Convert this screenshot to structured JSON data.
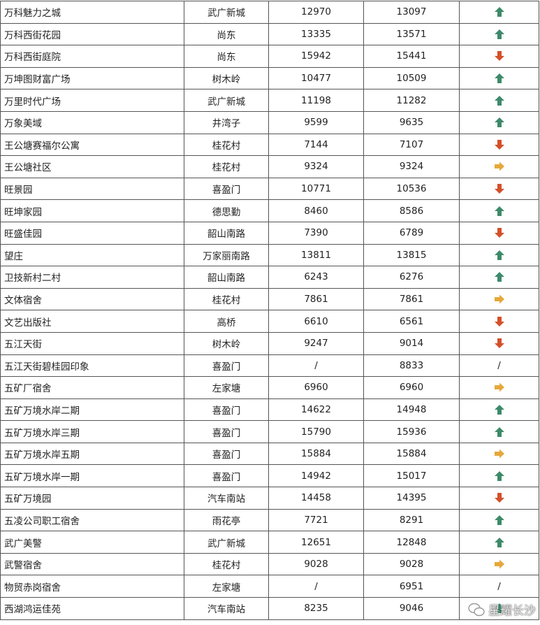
{
  "colors": {
    "up": "#3d8a6a",
    "down": "#d4502a",
    "flat": "#e6a83a"
  },
  "rows": [
    {
      "name": "万科魅力之城",
      "district": "武广新城",
      "prev": "12970",
      "curr": "13097",
      "trend": "up"
    },
    {
      "name": "万科西街花园",
      "district": "尚东",
      "prev": "13335",
      "curr": "13571",
      "trend": "up"
    },
    {
      "name": "万科西街庭院",
      "district": "尚东",
      "prev": "15942",
      "curr": "15441",
      "trend": "down"
    },
    {
      "name": "万坤图财富广场",
      "district": "树木岭",
      "prev": "10477",
      "curr": "10509",
      "trend": "up"
    },
    {
      "name": "万里时代广场",
      "district": "武广新城",
      "prev": "11198",
      "curr": "11282",
      "trend": "up"
    },
    {
      "name": "万象美域",
      "district": "井湾子",
      "prev": "9599",
      "curr": "9635",
      "trend": "up"
    },
    {
      "name": "王公塘赛福尔公寓",
      "district": "桂花村",
      "prev": "7144",
      "curr": "7107",
      "trend": "down"
    },
    {
      "name": "王公塘社区",
      "district": "桂花村",
      "prev": "9324",
      "curr": "9324",
      "trend": "flat"
    },
    {
      "name": "旺景园",
      "district": "喜盈门",
      "prev": "10771",
      "curr": "10536",
      "trend": "down"
    },
    {
      "name": "旺坤家园",
      "district": "德思勤",
      "prev": "8460",
      "curr": "8586",
      "trend": "up"
    },
    {
      "name": "旺盛佳园",
      "district": "韶山南路",
      "prev": "7390",
      "curr": "6789",
      "trend": "down"
    },
    {
      "name": "望庄",
      "district": "万家丽南路",
      "prev": "13811",
      "curr": "13815",
      "trend": "up"
    },
    {
      "name": "卫技新村二村",
      "district": "韶山南路",
      "prev": "6243",
      "curr": "6276",
      "trend": "up"
    },
    {
      "name": "文体宿舍",
      "district": "桂花村",
      "prev": "7861",
      "curr": "7861",
      "trend": "flat"
    },
    {
      "name": "文艺出版社",
      "district": "高桥",
      "prev": "6610",
      "curr": "6561",
      "trend": "down"
    },
    {
      "name": "五江天街",
      "district": "树木岭",
      "prev": "9247",
      "curr": "9014",
      "trend": "down"
    },
    {
      "name": "五江天街碧桂园印象",
      "district": "喜盈门",
      "prev": "/",
      "curr": "8833",
      "trend": "none",
      "trend_text": "/"
    },
    {
      "name": "五矿厂宿舍",
      "district": "左家塘",
      "prev": "6960",
      "curr": "6960",
      "trend": "flat"
    },
    {
      "name": "五矿万境水岸二期",
      "district": "喜盈门",
      "prev": "14622",
      "curr": "14948",
      "trend": "up"
    },
    {
      "name": "五矿万境水岸三期",
      "district": "喜盈门",
      "prev": "15790",
      "curr": "15936",
      "trend": "up"
    },
    {
      "name": "五矿万境水岸五期",
      "district": "喜盈门",
      "prev": "15884",
      "curr": "15884",
      "trend": "flat"
    },
    {
      "name": "五矿万境水岸一期",
      "district": "喜盈门",
      "prev": "14942",
      "curr": "15017",
      "trend": "up"
    },
    {
      "name": "五矿万境园",
      "district": "汽车南站",
      "prev": "14458",
      "curr": "14395",
      "trend": "down"
    },
    {
      "name": "五凌公司职工宿舍",
      "district": "雨花亭",
      "prev": "7721",
      "curr": "8291",
      "trend": "up"
    },
    {
      "name": "武广美警",
      "district": "武广新城",
      "prev": "12651",
      "curr": "12848",
      "trend": "up"
    },
    {
      "name": "武警宿舍",
      "district": "桂花村",
      "prev": "9028",
      "curr": "9028",
      "trend": "flat"
    },
    {
      "name": "物贸赤岗宿舍",
      "district": "左家塘",
      "prev": "/",
      "curr": "6951",
      "trend": "none",
      "trend_text": "/"
    },
    {
      "name": "西湖鸿运佳苑",
      "district": "汽车南站",
      "prev": "8235",
      "curr": "9046",
      "trend": "up"
    }
  ],
  "watermark": {
    "text": "星耀长沙",
    "icon": "wechat-icon"
  }
}
